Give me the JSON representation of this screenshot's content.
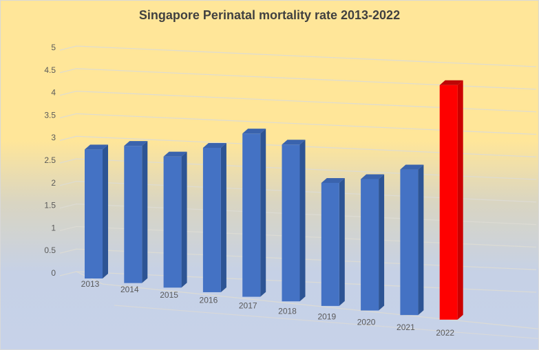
{
  "title": "Singapore Perinatal mortality rate 2013-2022",
  "chart_data": {
    "type": "bar",
    "style": "3d-column",
    "title": "Singapore Perinatal mortality rate 2013-2022",
    "categories": [
      "2013",
      "2014",
      "2015",
      "2016",
      "2017",
      "2018",
      "2019",
      "2020",
      "2021",
      "2022"
    ],
    "series": [
      {
        "name": "Perinatal mortality rate",
        "values": [
          2.8,
          2.9,
          2.7,
          2.9,
          3.2,
          3.0,
          2.3,
          2.4,
          2.6,
          4.1
        ]
      }
    ],
    "highlight_index": 9,
    "xlabel": "",
    "ylabel": "",
    "ylim": [
      0,
      5
    ],
    "ytick_step": 0.5,
    "ytick_labels": [
      "0",
      "0.5",
      "1",
      "1.5",
      "2",
      "2.5",
      "3",
      "3.5",
      "4",
      "4.5",
      "5"
    ],
    "grid": true,
    "legend_position": "none"
  },
  "colors": {
    "background_top": "#FFE699",
    "background_bottom": "#C7D2E9",
    "bar_front": "#4472C4",
    "bar_side": "#2D5494",
    "bar_top": "#3A63AD",
    "highlight_front": "#FE0000",
    "highlight_side": "#CC0000",
    "highlight_top": "#BD0606",
    "gridline": "#DDDBD4",
    "title_text": "#404040",
    "axis_text": "#595959"
  }
}
